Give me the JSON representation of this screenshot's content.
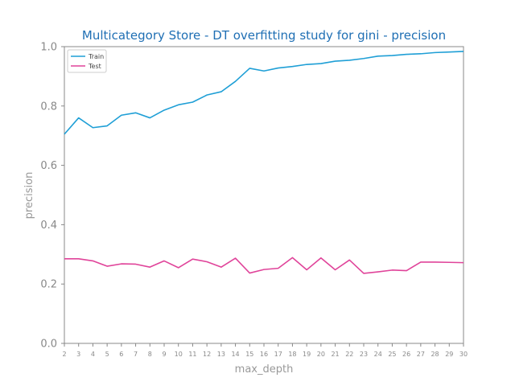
{
  "chart_data": {
    "type": "line",
    "title": "Multicategory Store - DT overfitting study for gini - precision",
    "xlabel": "max_depth",
    "ylabel": "precision",
    "xlim": [
      2,
      30
    ],
    "ylim": [
      0.0,
      1.0
    ],
    "x": [
      2,
      3,
      4,
      5,
      6,
      7,
      8,
      9,
      10,
      11,
      12,
      13,
      14,
      15,
      16,
      17,
      18,
      19,
      20,
      21,
      22,
      23,
      24,
      25,
      26,
      27,
      28,
      29,
      30
    ],
    "yticks": [
      "0.0",
      "0.2",
      "0.4",
      "0.6",
      "0.8",
      "1.0"
    ],
    "ytick_values": [
      0.0,
      0.2,
      0.4,
      0.6,
      0.8,
      1.0
    ],
    "legend_position": "upper-left",
    "grid": false,
    "series": [
      {
        "name": "Train",
        "color": "#1f9fd6",
        "values": [
          0.705,
          0.76,
          0.727,
          0.733,
          0.769,
          0.777,
          0.76,
          0.786,
          0.804,
          0.813,
          0.837,
          0.848,
          0.883,
          0.927,
          0.918,
          0.928,
          0.933,
          0.94,
          0.943,
          0.951,
          0.954,
          0.96,
          0.968,
          0.97,
          0.974,
          0.976,
          0.98,
          0.982,
          0.984
        ]
      },
      {
        "name": "Test",
        "color": "#e0449a",
        "values": [
          0.285,
          0.285,
          0.278,
          0.26,
          0.268,
          0.267,
          0.257,
          0.278,
          0.255,
          0.284,
          0.275,
          0.257,
          0.287,
          0.237,
          0.249,
          0.253,
          0.289,
          0.248,
          0.288,
          0.248,
          0.281,
          0.236,
          0.241,
          0.247,
          0.245,
          0.274,
          0.274,
          0.273,
          0.272
        ]
      }
    ]
  }
}
